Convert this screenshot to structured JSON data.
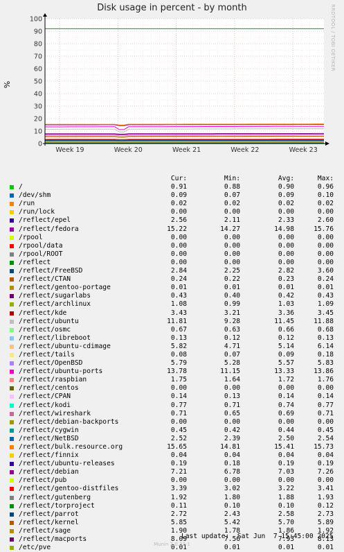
{
  "chart_data": {
    "type": "line",
    "title": "Disk usage in percent - by month",
    "ylabel": "%",
    "side_label": "RRDTOOL / TOBI OETIKER",
    "ylim": [
      0,
      100
    ],
    "yticks": [
      0,
      10,
      20,
      30,
      40,
      50,
      60,
      70,
      80,
      90,
      100
    ],
    "xticks": [
      "Week 19",
      "Week 20",
      "Week 21",
      "Week 22",
      "Week 23"
    ],
    "legend_headers": {
      "cur": "Cur:",
      "min": "Min:",
      "avg": "Avg:",
      "max": "Max:"
    },
    "series": [
      {
        "name": "/",
        "color": "#00cc00",
        "cur": "0.91",
        "min": "0.88",
        "avg": "0.90",
        "max": "0.96"
      },
      {
        "name": "/dev/shm",
        "color": "#0066b3",
        "cur": "0.09",
        "min": "0.07",
        "avg": "0.09",
        "max": "0.10"
      },
      {
        "name": "/run",
        "color": "#ff8000",
        "cur": "0.02",
        "min": "0.02",
        "avg": "0.02",
        "max": "0.02"
      },
      {
        "name": "/run/lock",
        "color": "#ffcc00",
        "cur": "0.00",
        "min": "0.00",
        "avg": "0.00",
        "max": "0.00"
      },
      {
        "name": "/reflect/epel",
        "color": "#330099",
        "cur": "2.56",
        "min": "2.11",
        "avg": "2.33",
        "max": "2.60"
      },
      {
        "name": "/reflect/fedora",
        "color": "#990099",
        "cur": "15.22",
        "min": "14.27",
        "avg": "14.98",
        "max": "15.76"
      },
      {
        "name": "/rpool",
        "color": "#ccff00",
        "cur": "0.00",
        "min": "0.00",
        "avg": "0.00",
        "max": "0.00"
      },
      {
        "name": "/rpool/data",
        "color": "#ff0000",
        "cur": "0.00",
        "min": "0.00",
        "avg": "0.00",
        "max": "0.00"
      },
      {
        "name": "/rpool/ROOT",
        "color": "#808080",
        "cur": "0.00",
        "min": "0.00",
        "avg": "0.00",
        "max": "0.00"
      },
      {
        "name": "/reflect",
        "color": "#008f00",
        "cur": "0.00",
        "min": "0.00",
        "avg": "0.00",
        "max": "0.00"
      },
      {
        "name": "/reflect/FreeBSD",
        "color": "#00487d",
        "cur": "2.84",
        "min": "2.25",
        "avg": "2.82",
        "max": "3.60"
      },
      {
        "name": "/reflect/CTAN",
        "color": "#b35a00",
        "cur": "0.24",
        "min": "0.22",
        "avg": "0.23",
        "max": "0.24"
      },
      {
        "name": "/reflect/gentoo-portage",
        "color": "#b38f00",
        "cur": "0.01",
        "min": "0.01",
        "avg": "0.01",
        "max": "0.01"
      },
      {
        "name": "/reflect/sugarlabs",
        "color": "#6b006b",
        "cur": "0.43",
        "min": "0.40",
        "avg": "0.42",
        "max": "0.43"
      },
      {
        "name": "/reflect/archlinux",
        "color": "#8fb300",
        "cur": "1.08",
        "min": "0.99",
        "avg": "1.03",
        "max": "1.09"
      },
      {
        "name": "/reflect/kde",
        "color": "#b30000",
        "cur": "3.43",
        "min": "3.21",
        "avg": "3.36",
        "max": "3.45"
      },
      {
        "name": "/reflect/ubuntu",
        "color": "#bebebe",
        "cur": "11.81",
        "min": "9.28",
        "avg": "11.45",
        "max": "11.88"
      },
      {
        "name": "/reflect/osmc",
        "color": "#80ff80",
        "cur": "0.67",
        "min": "0.63",
        "avg": "0.66",
        "max": "0.68"
      },
      {
        "name": "/reflect/libreboot",
        "color": "#80c9ff",
        "cur": "0.13",
        "min": "0.12",
        "avg": "0.12",
        "max": "0.13"
      },
      {
        "name": "/reflect/ubuntu-cdimage",
        "color": "#ffc080",
        "cur": "5.82",
        "min": "4.71",
        "avg": "5.14",
        "max": "6.14"
      },
      {
        "name": "/reflect/tails",
        "color": "#ffe680",
        "cur": "0.08",
        "min": "0.07",
        "avg": "0.09",
        "max": "0.18"
      },
      {
        "name": "/reflect/OpenBSD",
        "color": "#aa80ff",
        "cur": "5.79",
        "min": "5.28",
        "avg": "5.57",
        "max": "5.83"
      },
      {
        "name": "/reflect/ubuntu-ports",
        "color": "#ee00cc",
        "cur": "13.78",
        "min": "11.15",
        "avg": "13.33",
        "max": "13.86"
      },
      {
        "name": "/reflect/raspbian",
        "color": "#ff8080",
        "cur": "1.75",
        "min": "1.64",
        "avg": "1.72",
        "max": "1.76"
      },
      {
        "name": "/reflect/centos",
        "color": "#666600",
        "cur": "0.00",
        "min": "0.00",
        "avg": "0.00",
        "max": "0.00"
      },
      {
        "name": "/reflect/CPAN",
        "color": "#ffbfff",
        "cur": "0.14",
        "min": "0.13",
        "avg": "0.14",
        "max": "0.14"
      },
      {
        "name": "/reflect/kodi",
        "color": "#00ffcc",
        "cur": "0.77",
        "min": "0.71",
        "avg": "0.74",
        "max": "0.77"
      },
      {
        "name": "/reflect/wireshark",
        "color": "#cc6699",
        "cur": "0.71",
        "min": "0.65",
        "avg": "0.69",
        "max": "0.71"
      },
      {
        "name": "/reflect/debian-backports",
        "color": "#999900",
        "cur": "0.00",
        "min": "0.00",
        "avg": "0.00",
        "max": "0.00"
      },
      {
        "name": "/reflect/cygwin",
        "color": "#009999",
        "cur": "0.45",
        "min": "0.42",
        "avg": "0.44",
        "max": "0.45"
      },
      {
        "name": "/reflect/NetBSD",
        "color": "#0066b3",
        "cur": "2.52",
        "min": "2.39",
        "avg": "2.50",
        "max": "2.54"
      },
      {
        "name": "/reflect/bulk.resource.org",
        "color": "#ff8000",
        "cur": "15.65",
        "min": "14.81",
        "avg": "15.41",
        "max": "15.73"
      },
      {
        "name": "/reflect/finnix",
        "color": "#ffcc00",
        "cur": "0.04",
        "min": "0.04",
        "avg": "0.04",
        "max": "0.04"
      },
      {
        "name": "/reflect/ubuntu-releases",
        "color": "#330099",
        "cur": "0.19",
        "min": "0.18",
        "avg": "0.19",
        "max": "0.19"
      },
      {
        "name": "/reflect/debian",
        "color": "#990099",
        "cur": "7.21",
        "min": "6.78",
        "avg": "7.03",
        "max": "7.26"
      },
      {
        "name": "/reflect/pub",
        "color": "#ccff00",
        "cur": "0.00",
        "min": "0.00",
        "avg": "0.00",
        "max": "0.00"
      },
      {
        "name": "/reflect/gentoo-distfiles",
        "color": "#ff0000",
        "cur": "3.39",
        "min": "3.02",
        "avg": "3.22",
        "max": "3.41"
      },
      {
        "name": "/reflect/gutenberg",
        "color": "#808080",
        "cur": "1.92",
        "min": "1.80",
        "avg": "1.88",
        "max": "1.93"
      },
      {
        "name": "/reflect/torproject",
        "color": "#008f00",
        "cur": "0.11",
        "min": "0.10",
        "avg": "0.10",
        "max": "0.12"
      },
      {
        "name": "/reflect/parrot",
        "color": "#00487d",
        "cur": "2.72",
        "min": "2.43",
        "avg": "2.58",
        "max": "2.73"
      },
      {
        "name": "/reflect/kernel",
        "color": "#b35a00",
        "cur": "5.85",
        "min": "5.42",
        "avg": "5.70",
        "max": "5.89"
      },
      {
        "name": "/reflect/sage",
        "color": "#b38f00",
        "cur": "1.90",
        "min": "1.78",
        "avg": "1.86",
        "max": "1.92"
      },
      {
        "name": "/reflect/macports",
        "color": "#6b006b",
        "cur": "8.09",
        "min": "7.56",
        "avg": "7.93",
        "max": "8.13"
      },
      {
        "name": "/etc/pve",
        "color": "#8fb300",
        "cur": "0.01",
        "min": "0.01",
        "avg": "0.01",
        "max": "0.01"
      }
    ],
    "warning_line": {
      "value": 92,
      "color": "#00aa00"
    }
  },
  "footer": {
    "last_update": "Last update:  Sat Jun  7 15:45:00 2025",
    "version": "Munin 2.0.33-1"
  }
}
